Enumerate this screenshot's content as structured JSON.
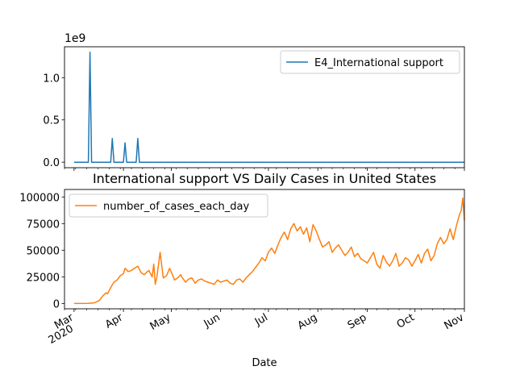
{
  "chart_data": [
    {
      "type": "line",
      "title": "",
      "offset_label": "1e9",
      "xlabel": "",
      "ylabel": "",
      "ylim": [
        -0.065,
        1.365
      ],
      "yticks": [
        0.0,
        0.5,
        1.0
      ],
      "ytick_labels": [
        "0.0",
        "0.5",
        "1.0"
      ],
      "grid": false,
      "legend": {
        "position": "top-right"
      },
      "series": [
        {
          "name": "E4_International support",
          "color": "#1f77b4",
          "x": [
            "2020-03-01",
            "2020-03-10",
            "2020-03-11",
            "2020-03-12",
            "2020-03-13",
            "2020-03-24",
            "2020-03-25",
            "2020-03-26",
            "2020-04-01",
            "2020-04-02",
            "2020-04-03",
            "2020-04-09",
            "2020-04-10",
            "2020-04-11",
            "2020-11-01"
          ],
          "values": [
            0,
            0,
            1.3,
            0,
            0,
            0,
            0.28,
            0,
            0,
            0.23,
            0,
            0,
            0.28,
            0,
            0
          ]
        }
      ]
    },
    {
      "type": "line",
      "title": "International support VS Daily Cases in United States",
      "xlabel": "Date",
      "ylabel": "",
      "ylim": [
        -5000,
        107000
      ],
      "yticks": [
        0,
        25000,
        50000,
        75000,
        100000
      ],
      "ytick_labels": [
        "0",
        "25000",
        "50000",
        "75000",
        "100000"
      ],
      "xticks": [
        "Mar\n2020",
        "Apr",
        "May",
        "Jun",
        "Jul",
        "Aug",
        "Sep",
        "Oct",
        "Nov"
      ],
      "grid": false,
      "legend": {
        "position": "top-left"
      },
      "series": [
        {
          "name": "number_of_cases_each_day",
          "color": "#ff7f0e",
          "x": [
            "2020-03-01",
            "2020-03-10",
            "2020-03-14",
            "2020-03-17",
            "2020-03-19",
            "2020-03-21",
            "2020-03-22",
            "2020-03-24",
            "2020-03-26",
            "2020-03-28",
            "2020-03-30",
            "2020-04-01",
            "2020-04-02",
            "2020-04-04",
            "2020-04-06",
            "2020-04-08",
            "2020-04-10",
            "2020-04-12",
            "2020-04-14",
            "2020-04-16",
            "2020-04-17",
            "2020-04-18",
            "2020-04-19",
            "2020-04-20",
            "2020-04-21",
            "2020-04-22",
            "2020-04-24",
            "2020-04-26",
            "2020-04-28",
            "2020-04-30",
            "2020-05-02",
            "2020-05-03",
            "2020-05-05",
            "2020-05-07",
            "2020-05-08",
            "2020-05-10",
            "2020-05-12",
            "2020-05-14",
            "2020-05-16",
            "2020-05-18",
            "2020-05-20",
            "2020-05-22",
            "2020-05-24",
            "2020-05-26",
            "2020-05-28",
            "2020-05-30",
            "2020-06-01",
            "2020-06-03",
            "2020-06-05",
            "2020-06-07",
            "2020-06-09",
            "2020-06-11",
            "2020-06-13",
            "2020-06-15",
            "2020-06-17",
            "2020-06-19",
            "2020-06-21",
            "2020-06-23",
            "2020-06-25",
            "2020-06-27",
            "2020-06-29",
            "2020-07-01",
            "2020-07-03",
            "2020-07-05",
            "2020-07-07",
            "2020-07-09",
            "2020-07-11",
            "2020-07-13",
            "2020-07-15",
            "2020-07-17",
            "2020-07-19",
            "2020-07-21",
            "2020-07-23",
            "2020-07-25",
            "2020-07-27",
            "2020-07-29",
            "2020-07-31",
            "2020-08-02",
            "2020-08-04",
            "2020-08-06",
            "2020-08-08",
            "2020-08-10",
            "2020-08-12",
            "2020-08-14",
            "2020-08-16",
            "2020-08-18",
            "2020-08-20",
            "2020-08-22",
            "2020-08-24",
            "2020-08-26",
            "2020-08-28",
            "2020-08-30",
            "2020-09-01",
            "2020-09-03",
            "2020-09-05",
            "2020-09-07",
            "2020-09-09",
            "2020-09-11",
            "2020-09-13",
            "2020-09-15",
            "2020-09-17",
            "2020-09-19",
            "2020-09-21",
            "2020-09-23",
            "2020-09-25",
            "2020-09-27",
            "2020-09-29",
            "2020-10-01",
            "2020-10-03",
            "2020-10-05",
            "2020-10-07",
            "2020-10-09",
            "2020-10-11",
            "2020-10-13",
            "2020-10-15",
            "2020-10-17",
            "2020-10-19",
            "2020-10-21",
            "2020-10-23",
            "2020-10-25",
            "2020-10-27",
            "2020-10-29",
            "2020-10-30",
            "2020-10-31",
            "2020-11-01"
          ],
          "values": [
            0,
            100,
            700,
            3000,
            7000,
            10000,
            9000,
            15000,
            20000,
            22000,
            26000,
            28000,
            33000,
            30000,
            31000,
            33000,
            35000,
            29000,
            27000,
            30000,
            31000,
            28000,
            25000,
            37000,
            18000,
            25000,
            48000,
            24000,
            26000,
            33000,
            26000,
            22000,
            24000,
            27000,
            24000,
            20000,
            23000,
            24000,
            19000,
            22000,
            23000,
            21000,
            20000,
            19000,
            18000,
            22000,
            20000,
            21000,
            22000,
            19000,
            18000,
            22000,
            23000,
            20000,
            24000,
            27000,
            30000,
            34000,
            38000,
            43000,
            40000,
            48000,
            52000,
            47000,
            55000,
            62000,
            67000,
            60000,
            70000,
            75000,
            68000,
            72000,
            65000,
            71000,
            58000,
            74000,
            68000,
            60000,
            53000,
            55000,
            58000,
            48000,
            52000,
            55000,
            50000,
            45000,
            48000,
            53000,
            44000,
            47000,
            42000,
            40000,
            38000,
            43000,
            48000,
            37000,
            33000,
            45000,
            39000,
            35000,
            40000,
            47000,
            35000,
            38000,
            43000,
            41000,
            35000,
            40000,
            46000,
            38000,
            47000,
            51000,
            40000,
            45000,
            56000,
            62000,
            56000,
            60000,
            70000,
            60000,
            73000,
            84000,
            87000,
            99000,
            78000
          ]
        }
      ]
    }
  ]
}
